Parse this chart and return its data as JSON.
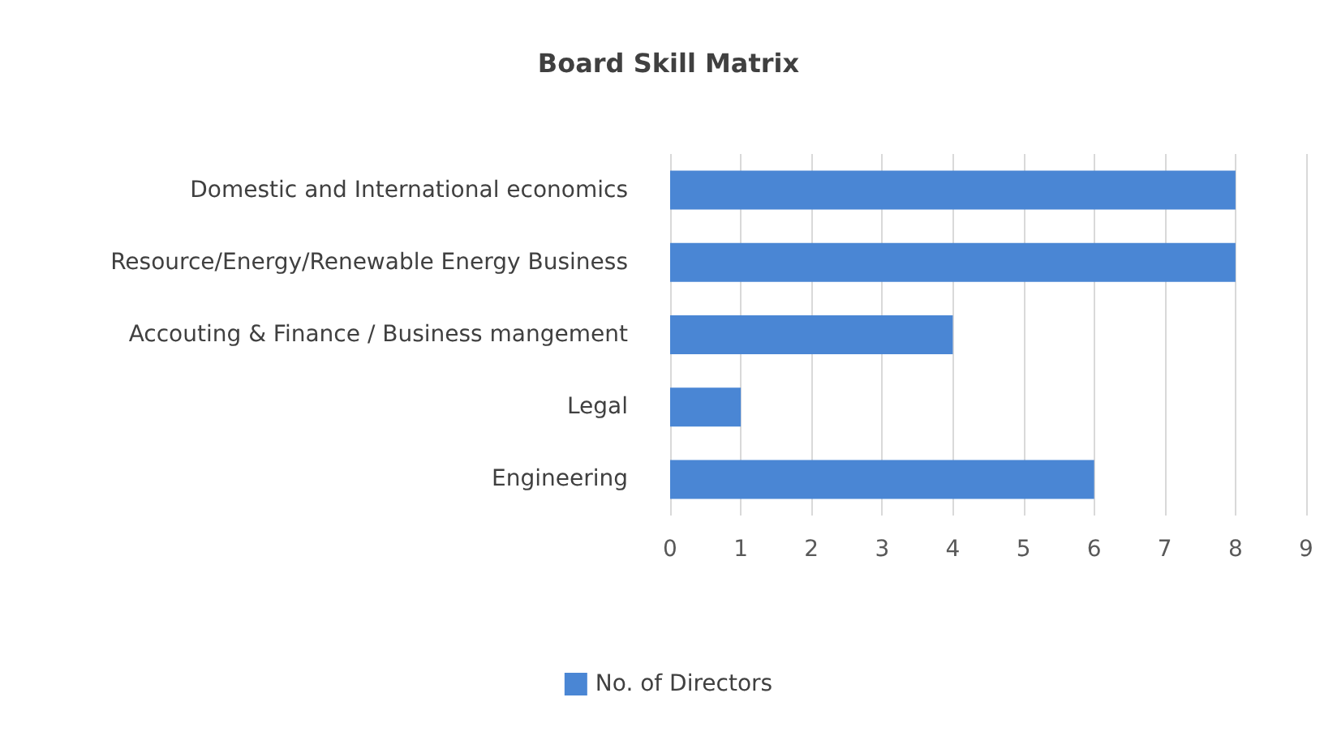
{
  "chart_data": {
    "type": "bar",
    "orientation": "horizontal",
    "title": "Board Skill Matrix",
    "categories": [
      "Domestic and International economics",
      "Resource/Energy/Renewable Energy Business",
      "Accouting & Finance / Business mangement",
      "Legal",
      "Engineering"
    ],
    "series": [
      {
        "name": "No. of Directors",
        "color": "#4a86d4",
        "values": [
          8,
          8,
          4,
          1,
          6
        ]
      }
    ],
    "xlim": [
      0,
      9
    ],
    "xticks": [
      0,
      1,
      2,
      3,
      4,
      5,
      6,
      7,
      8,
      9
    ],
    "grid": "x",
    "legend": "bottom"
  }
}
